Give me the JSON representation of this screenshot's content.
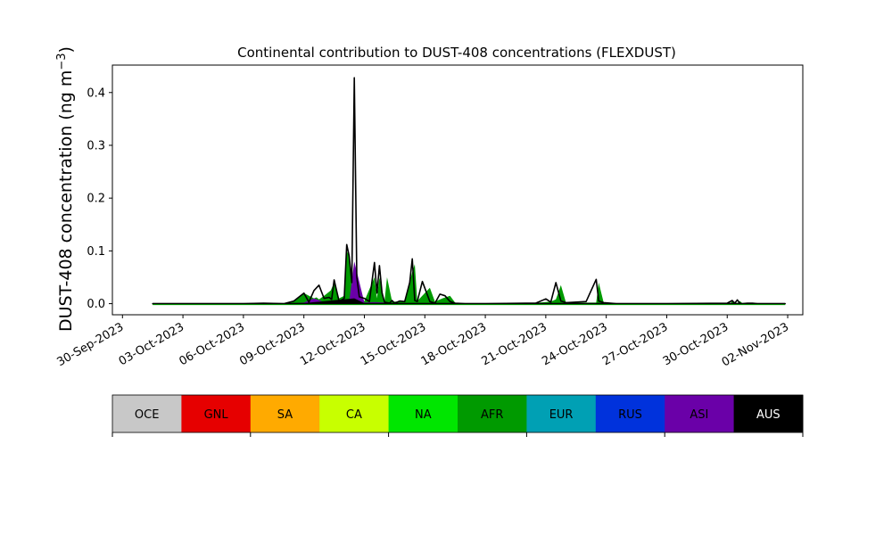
{
  "chart_data": {
    "type": "area",
    "title": "Continental contribution to DUST-408 concentrations (FLEXDUST)",
    "ylabel": "DUST-408 concentration (ng m⁻³)",
    "xlabel": "",
    "xlim": [
      "2023-09-29T12:00",
      "2023-11-02T18:00"
    ],
    "ylim": [
      -0.021,
      0.452
    ],
    "x_ticks": [
      "30-Sep-2023",
      "03-Oct-2023",
      "06-Oct-2023",
      "09-Oct-2023",
      "12-Oct-2023",
      "15-Oct-2023",
      "18-Oct-2023",
      "21-Oct-2023",
      "24-Oct-2023",
      "27-Oct-2023",
      "30-Oct-2023",
      "02-Nov-2023"
    ],
    "y_ticks": [
      "0.0",
      "0.1",
      "0.2",
      "0.3",
      "0.4"
    ],
    "y_tick_values": [
      0.0,
      0.1,
      0.2,
      0.3,
      0.4
    ],
    "legend_position": "below",
    "categories_order": [
      "OCE",
      "GNL",
      "SA",
      "CA",
      "NA",
      "AFR",
      "EUR",
      "RUS",
      "ASI",
      "AUS"
    ],
    "series": [
      {
        "name": "AFR",
        "color": "#009a00",
        "x": [
          "2023-10-01T12:00",
          "2023-10-08T00:00",
          "2023-10-08T12:00",
          "2023-10-09T00:00",
          "2023-10-09T12:00",
          "2023-10-09T15:00",
          "2023-10-09T18:00",
          "2023-10-10T00:00",
          "2023-10-10T08:00",
          "2023-10-10T12:00",
          "2023-10-10T18:00",
          "2023-10-11T00:00",
          "2023-10-11T03:00",
          "2023-10-11T06:00",
          "2023-10-11T12:00",
          "2023-10-11T15:00",
          "2023-10-11T18:00",
          "2023-10-12T00:00",
          "2023-10-12T12:00",
          "2023-10-12T15:00",
          "2023-10-12T18:00",
          "2023-10-13T00:00",
          "2023-10-13T03:00",
          "2023-10-13T09:00",
          "2023-10-13T18:00",
          "2023-10-14T00:00",
          "2023-10-14T09:00",
          "2023-10-14T12:00",
          "2023-10-14T15:00",
          "2023-10-15T06:00",
          "2023-10-15T12:00",
          "2023-10-15T21:00",
          "2023-10-16T06:00",
          "2023-10-16T12:00",
          "2023-10-17T00:00",
          "2023-10-20T00:00",
          "2023-10-21T06:00",
          "2023-10-21T12:00",
          "2023-10-21T18:00",
          "2023-10-22T00:00",
          "2023-10-23T12:00",
          "2023-10-23T15:00",
          "2023-10-23T21:00",
          "2023-10-24T12:00",
          "2023-10-30T03:00",
          "2023-10-30T06:00",
          "2023-10-30T12:00",
          "2023-10-30T15:00",
          "2023-10-30T18:00",
          "2023-11-01T21:00"
        ],
        "values": [
          0,
          0,
          0.004,
          0.02,
          0.01,
          0.012,
          0.008,
          0.015,
          0.025,
          0.04,
          0.01,
          0.015,
          0.1,
          0.09,
          0.01,
          0.05,
          0.004,
          0.005,
          0.05,
          0.01,
          0.05,
          0.005,
          0.05,
          0.004,
          0.004,
          0.005,
          0.06,
          0.075,
          0.005,
          0.03,
          0.004,
          0.01,
          0.015,
          0.002,
          0,
          0,
          0.004,
          0.008,
          0.035,
          0.002,
          0.002,
          0.04,
          0.002,
          0,
          0,
          0.004,
          0.001,
          0.005,
          0.001,
          0
        ]
      },
      {
        "name": "ASI",
        "color": "#6a00a8",
        "x": [
          "2023-10-08T00:00",
          "2023-10-09T00:00",
          "2023-10-09T12:00",
          "2023-10-10T00:00",
          "2023-10-11T06:00",
          "2023-10-11T12:00",
          "2023-10-12T00:00",
          "2023-10-12T12:00",
          "2023-10-13T00:00",
          "2023-10-14T00:00"
        ],
        "values": [
          0,
          0.002,
          0.01,
          0.003,
          0.004,
          0.08,
          0.002,
          0.003,
          0.002,
          0
        ]
      },
      {
        "name": "AUS",
        "color": "#000000",
        "x": [
          "2023-10-08T00:00",
          "2023-10-09T00:00",
          "2023-10-11T12:00",
          "2023-10-12T00:00",
          "2023-10-13T00:00"
        ],
        "values": [
          0,
          0.001,
          0.01,
          0.001,
          0
        ]
      }
    ],
    "total": {
      "x": [
        "2023-10-01T12:00",
        "2023-10-04T12:00",
        "2023-10-06T00:00",
        "2023-10-07T00:00",
        "2023-10-08T00:00",
        "2023-10-08T12:00",
        "2023-10-09T00:00",
        "2023-10-09T06:00",
        "2023-10-09T12:00",
        "2023-10-09T18:00",
        "2023-10-10T00:00",
        "2023-10-10T06:00",
        "2023-10-10T09:00",
        "2023-10-10T12:00",
        "2023-10-10T18:00",
        "2023-10-11T00:00",
        "2023-10-11T03:00",
        "2023-10-11T06:00",
        "2023-10-11T09:00",
        "2023-10-11T12:00",
        "2023-10-11T15:00",
        "2023-10-11T18:00",
        "2023-10-12T00:00",
        "2023-10-12T06:00",
        "2023-10-12T12:00",
        "2023-10-12T15:00",
        "2023-10-12T18:00",
        "2023-10-12T21:00",
        "2023-10-13T00:00",
        "2023-10-13T06:00",
        "2023-10-13T09:00",
        "2023-10-13T12:00",
        "2023-10-13T18:00",
        "2023-10-14T00:00",
        "2023-10-14T06:00",
        "2023-10-14T09:00",
        "2023-10-14T12:00",
        "2023-10-14T15:00",
        "2023-10-14T21:00",
        "2023-10-15T06:00",
        "2023-10-15T12:00",
        "2023-10-15T18:00",
        "2023-10-16T00:00",
        "2023-10-16T06:00",
        "2023-10-16T12:00",
        "2023-10-17T00:00",
        "2023-10-18T00:00",
        "2023-10-20T00:00",
        "2023-10-20T12:00",
        "2023-10-21T00:00",
        "2023-10-21T06:00",
        "2023-10-21T12:00",
        "2023-10-21T18:00",
        "2023-10-22T00:00",
        "2023-10-23T00:00",
        "2023-10-23T12:00",
        "2023-10-23T15:00",
        "2023-10-23T21:00",
        "2023-10-24T12:00",
        "2023-10-27T00:00",
        "2023-10-30T00:00",
        "2023-10-30T06:00",
        "2023-10-30T09:00",
        "2023-10-30T12:00",
        "2023-10-30T15:00",
        "2023-10-30T18:00",
        "2023-10-31T00:00",
        "2023-10-31T06:00",
        "2023-10-31T12:00",
        "2023-11-01T21:00"
      ],
      "values": [
        0,
        0,
        0,
        0.001,
        0,
        0.005,
        0.02,
        0.003,
        0.025,
        0.035,
        0.01,
        0.012,
        0.008,
        0.045,
        0.004,
        0.01,
        0.112,
        0.09,
        0.04,
        0.428,
        0.05,
        0.013,
        0.01,
        0.004,
        0.078,
        0.02,
        0.072,
        0.02,
        0.003,
        0.001,
        0.006,
        0.001,
        0.005,
        0.004,
        0.04,
        0.085,
        0.006,
        0.004,
        0.042,
        0.004,
        0.001,
        0.018,
        0.015,
        0.004,
        0.001,
        0,
        0,
        0.001,
        0.001,
        0.009,
        0.003,
        0.04,
        0.005,
        0.002,
        0.004,
        0.046,
        0.005,
        0.002,
        0,
        0,
        0.001,
        0.006,
        0.001,
        0.007,
        0.001,
        0,
        0.001,
        0.001,
        0,
        0
      ]
    }
  },
  "legend": {
    "items": [
      {
        "label": "OCE",
        "color": "#c8c8c8",
        "text_color": "#000000"
      },
      {
        "label": "GNL",
        "color": "#e60000",
        "text_color": "#000000"
      },
      {
        "label": "SA",
        "color": "#ffaa00",
        "text_color": "#000000"
      },
      {
        "label": "CA",
        "color": "#c8ff00",
        "text_color": "#000000"
      },
      {
        "label": "NA",
        "color": "#00e600",
        "text_color": "#000000"
      },
      {
        "label": "AFR",
        "color": "#009a00",
        "text_color": "#000000"
      },
      {
        "label": "EUR",
        "color": "#00a0b4",
        "text_color": "#000000"
      },
      {
        "label": "RUS",
        "color": "#0032dc",
        "text_color": "#000000"
      },
      {
        "label": "ASI",
        "color": "#6a00a8",
        "text_color": "#000000"
      },
      {
        "label": "AUS",
        "color": "#000000",
        "text_color": "#ffffff"
      }
    ]
  }
}
